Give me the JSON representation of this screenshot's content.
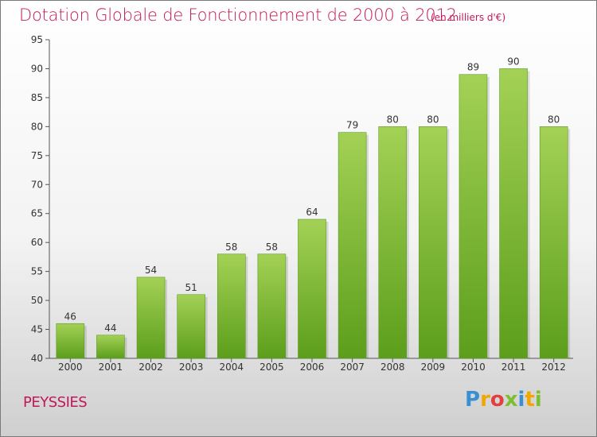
{
  "header": {
    "title": "Dotation Globale de Fonctionnement de 2000 à 2012",
    "subtitle": "(en milliers d'€)"
  },
  "footer": {
    "commune": "PEYSSIES",
    "logo_letters": [
      "P",
      "r",
      "o",
      "x",
      "i",
      "t",
      "i"
    ]
  },
  "colors": {
    "title": "#c2185b",
    "bar_top": "#a3d156",
    "bar_bottom": "#5c9e1c"
  },
  "chart_data": {
    "type": "bar",
    "title": "Dotation Globale de Fonctionnement de 2000 à 2012",
    "subtitle": "(en milliers d'€)",
    "categories": [
      "2000",
      "2001",
      "2002",
      "2003",
      "2004",
      "2005",
      "2006",
      "2007",
      "2008",
      "2009",
      "2010",
      "2011",
      "2012"
    ],
    "values": [
      46,
      44,
      54,
      51,
      58,
      58,
      64,
      79,
      80,
      80,
      89,
      90,
      80
    ],
    "ylim": [
      40,
      95
    ],
    "yticks": [
      40,
      45,
      50,
      55,
      60,
      65,
      70,
      75,
      80,
      85,
      90,
      95
    ],
    "grid": false,
    "legend": "none"
  }
}
